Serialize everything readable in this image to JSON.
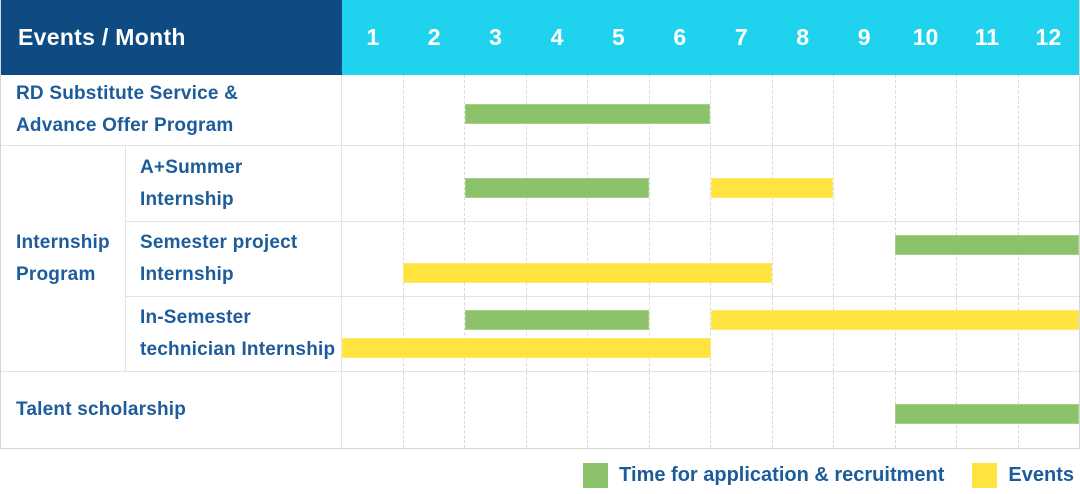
{
  "header": {
    "title": "Events / Month"
  },
  "colors": {
    "header_bg": "#0e4b82",
    "months_bg": "#1fd3ee",
    "label_text": "#1d5c9b",
    "application_green": "#8cc269",
    "event_yellow": "#ffe33f"
  },
  "chart_data": {
    "type": "bar",
    "subtype": "gantt",
    "title": "Events / Month",
    "xlabel": "Month",
    "x_range": [
      1,
      12
    ],
    "months": [
      "1",
      "2",
      "3",
      "4",
      "5",
      "6",
      "7",
      "8",
      "9",
      "10",
      "11",
      "12"
    ],
    "palette": {
      "application": "#8cc269",
      "event": "#ffe33f"
    },
    "groups": [
      {
        "name": "Internship Program",
        "label_lines": [
          "Internship",
          "Program"
        ]
      }
    ],
    "rows": [
      {
        "label": "RD Substitute Service & Advance Offer Program",
        "label_lines": [
          "RD Substitute Service &",
          "Advance Offer Program"
        ],
        "group": null,
        "track_count": 1,
        "bars": [
          {
            "kind": "application",
            "start_month": 3,
            "end_month": 6,
            "track": 0
          }
        ]
      },
      {
        "label": "A+Summer Internship",
        "label_lines": [
          "A+Summer",
          "Internship"
        ],
        "group": "Internship Program",
        "track_count": 1,
        "bars": [
          {
            "kind": "application",
            "start_month": 3,
            "end_month": 5,
            "track": 0
          },
          {
            "kind": "event",
            "start_month": 7,
            "end_month": 8,
            "track": 0
          }
        ]
      },
      {
        "label": "Semester project Internship",
        "label_lines": [
          "Semester project",
          "Internship"
        ],
        "group": "Internship Program",
        "track_count": 2,
        "bars": [
          {
            "kind": "application",
            "start_month": 10,
            "end_month": 12,
            "track": 0
          },
          {
            "kind": "event",
            "start_month": 2,
            "end_month": 7,
            "track": 1
          }
        ]
      },
      {
        "label": "In-Semester technician Internship",
        "label_lines": [
          "In-Semester",
          "technician Internship"
        ],
        "group": "Internship Program",
        "track_count": 2,
        "bars": [
          {
            "kind": "application",
            "start_month": 3,
            "end_month": 5,
            "track": 0
          },
          {
            "kind": "event",
            "start_month": 7,
            "end_month": 12,
            "track": 0
          },
          {
            "kind": "event",
            "start_month": 1,
            "end_month": 6,
            "track": 1
          }
        ]
      },
      {
        "label": "Talent scholarship",
        "label_lines": [
          "Talent scholarship"
        ],
        "group": null,
        "track_count": 1,
        "bars": [
          {
            "kind": "application",
            "start_month": 10,
            "end_month": 12,
            "track": 0
          }
        ]
      }
    ],
    "legend": [
      {
        "kind": "application",
        "label": "Time for application & recruitment",
        "color": "#8cc269"
      },
      {
        "kind": "event",
        "label": "Events",
        "color": "#ffe33f"
      }
    ],
    "legend_position": "bottom-right"
  }
}
